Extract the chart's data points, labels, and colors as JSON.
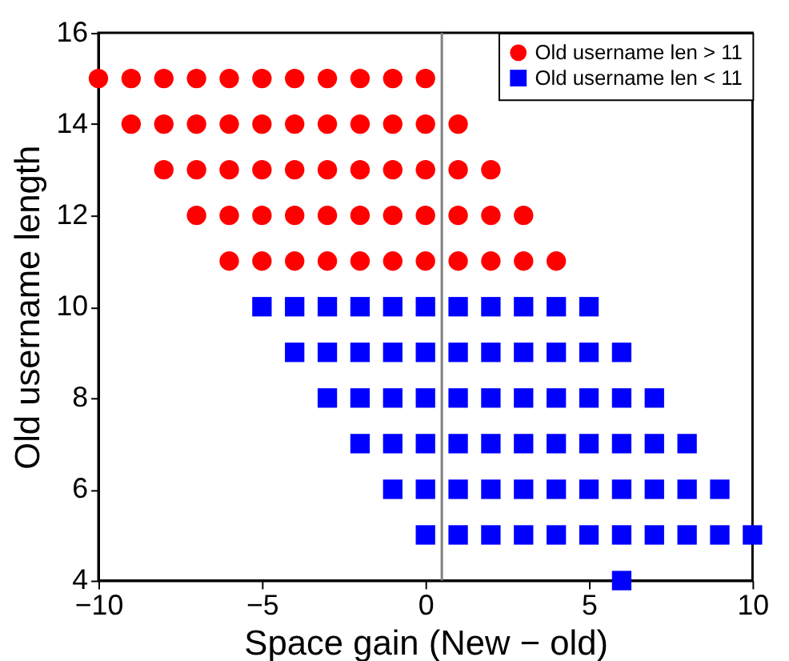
{
  "chart_data": {
    "type": "scatter",
    "xlabel": "Space gain (New − old)",
    "ylabel": "Old username length",
    "xlim": [
      -10,
      10
    ],
    "xticks": [
      -10,
      -5,
      0,
      5,
      10
    ],
    "ylim": [
      4,
      16
    ],
    "yticks": [
      4,
      6,
      8,
      10,
      12,
      14,
      16
    ],
    "grid": false,
    "legend": "top right",
    "ref_lines": [
      {
        "axis": "x",
        "value": 0.5,
        "color": "#808080"
      }
    ],
    "series": [
      {
        "name": "Old username len > 11",
        "color": "#ff0000",
        "marker": "circle",
        "x": [
          -10,
          -9,
          -8,
          -7,
          -6,
          -5,
          -4,
          -3,
          -2,
          -1,
          0,
          -9,
          -8,
          -7,
          -6,
          -5,
          -4,
          -3,
          -2,
          -1,
          0,
          1,
          -8,
          -7,
          -6,
          -5,
          -4,
          -3,
          -2,
          -1,
          0,
          1,
          2,
          -7,
          -6,
          -5,
          -4,
          -3,
          -2,
          -1,
          0,
          1,
          2,
          3,
          -6,
          -5,
          -4,
          -3,
          -2,
          -1,
          0,
          1,
          2,
          3,
          4
        ],
        "values": [
          15,
          15,
          15,
          15,
          15,
          15,
          15,
          15,
          15,
          15,
          15,
          14,
          14,
          14,
          14,
          14,
          14,
          14,
          14,
          14,
          14,
          14,
          13,
          13,
          13,
          13,
          13,
          13,
          13,
          13,
          13,
          13,
          13,
          12,
          12,
          12,
          12,
          12,
          12,
          12,
          12,
          12,
          12,
          12,
          11,
          11,
          11,
          11,
          11,
          11,
          11,
          11,
          11,
          11,
          11
        ]
      },
      {
        "name": "Old username len < 11",
        "color": "#0000ff",
        "marker": "square",
        "x": [
          -5,
          -4,
          -3,
          -2,
          -1,
          0,
          1,
          2,
          3,
          4,
          5,
          -4,
          -3,
          -2,
          -1,
          0,
          1,
          2,
          3,
          4,
          5,
          6,
          -3,
          -2,
          -1,
          0,
          1,
          2,
          3,
          4,
          5,
          6,
          7,
          -2,
          -1,
          0,
          1,
          2,
          3,
          4,
          5,
          6,
          7,
          8,
          -1,
          0,
          1,
          2,
          3,
          4,
          5,
          6,
          7,
          8,
          9,
          0,
          1,
          2,
          3,
          4,
          5,
          6,
          7,
          8,
          9,
          10,
          6
        ],
        "values": [
          10,
          10,
          10,
          10,
          10,
          10,
          10,
          10,
          10,
          10,
          10,
          9,
          9,
          9,
          9,
          9,
          9,
          9,
          9,
          9,
          9,
          9,
          8,
          8,
          8,
          8,
          8,
          8,
          8,
          8,
          8,
          8,
          8,
          7,
          7,
          7,
          7,
          7,
          7,
          7,
          7,
          7,
          7,
          7,
          6,
          6,
          6,
          6,
          6,
          6,
          6,
          6,
          6,
          6,
          6,
          5,
          5,
          5,
          5,
          5,
          5,
          5,
          5,
          5,
          5,
          5,
          4
        ]
      }
    ]
  }
}
